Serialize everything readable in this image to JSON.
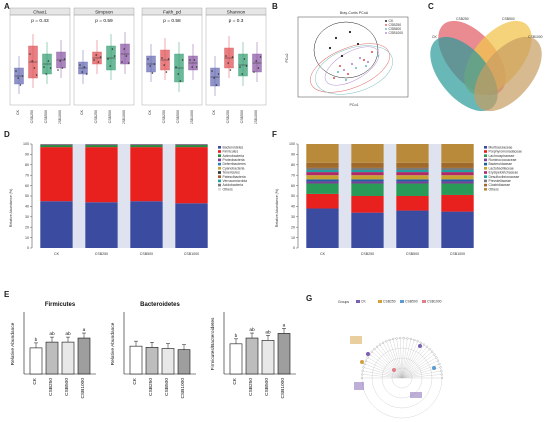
{
  "panels": {
    "A": "A",
    "B": "B",
    "C": "C",
    "D": "D",
    "E": "E",
    "F": "F",
    "G": "G"
  },
  "panelA": {
    "groups": [
      "CK",
      "CSB250",
      "CSB500",
      "CSB1000"
    ],
    "colors": [
      "#6a6fb6",
      "#e0555a",
      "#3ba277",
      "#8e5ba6"
    ],
    "subplots": [
      {
        "title": "Chao1",
        "p": "p = 0.43"
      },
      {
        "title": "Simpson",
        "p": "p = 0.59"
      },
      {
        "title": "Faith_pd",
        "p": "p = 0.58"
      },
      {
        "title": "Shannon",
        "p": "p = 0.3"
      }
    ]
  },
  "panelB": {
    "title": "Bray-Curtis PCoA",
    "xlabel": "PCo1",
    "ylabel": "PCo2",
    "legend": [
      "CK",
      "CSB250",
      "CSB500",
      "CSB1000"
    ]
  },
  "panelC": {
    "sets": [
      "CSB250",
      "CSB500",
      "CK",
      "CSB1000"
    ],
    "colors": [
      "#e3646d",
      "#f2c44e",
      "#2a9a9a",
      "#c79c63"
    ]
  },
  "panelD": {
    "categories": [
      "CK",
      "CSB250",
      "CSB500",
      "CSB1000"
    ],
    "ylabel": "Relative Abundance (%)",
    "yticks": [
      "100",
      "90",
      "80",
      "70",
      "60",
      "50",
      "40",
      "30",
      "20",
      "10",
      "0"
    ],
    "legend": [
      "Bacteroidetes",
      "Firmicutes",
      "Actinobacteria",
      "Proteobacteria",
      "Deferribacteres",
      "Cyanobacteria",
      "Tenericutes",
      "Patescibacteria",
      "Verrucomicrobia",
      "Acidobacteria",
      "Others"
    ],
    "colors": [
      "#3a4ba0",
      "#e8201e",
      "#2a8c3f",
      "#7b3f99",
      "#2c7fb8",
      "#c8a132",
      "#333333",
      "#a05a2c",
      "#22a3a0",
      "#7a7a7a",
      "#dcdcdc"
    ]
  },
  "panelF": {
    "categories": [
      "CK",
      "CSB250",
      "CSB500",
      "CSB1000"
    ],
    "ylabel": "Relative Abundance (%)",
    "yticks": [
      "100",
      "90",
      "80",
      "70",
      "60",
      "50",
      "40",
      "30",
      "20",
      "10",
      "0"
    ],
    "legend": [
      "Muribaculaceae",
      "Porphyromonadaceae",
      "Lachnospiraceae",
      "Ruminococcaceae",
      "Bacteroidaceae",
      "Lactobacillaceae",
      "Erysipelotrichaceae",
      "Desulfovibrionaceae",
      "Prevotellaceae",
      "Clostridiaceae",
      "Others"
    ],
    "colors": [
      "#3a4ba0",
      "#e8201e",
      "#2a9a58",
      "#7b3f99",
      "#1f5fa0",
      "#c8a132",
      "#b02a6a",
      "#22a3a0",
      "#7a7a7a",
      "#a06a2c",
      "#b88a3a"
    ]
  },
  "panelE": {
    "categories": [
      "CK",
      "CSB250",
      "CSB500",
      "CSB1000"
    ],
    "charts": [
      {
        "title": "Firmicutes",
        "ylabel": "Relative Abundance",
        "sig": [
          "b",
          "ab",
          "ab",
          "a"
        ]
      },
      {
        "title": "Bacteroidetes",
        "ylabel": "Relative Abundance",
        "sig": [
          "",
          "",
          "",
          ""
        ]
      },
      {
        "title": "",
        "ylabel": "Firmicutes/Bacteroidetes",
        "sig": [
          "b",
          "ab",
          "ab",
          "a"
        ]
      }
    ]
  },
  "panelG": {
    "legend_title": "Groups",
    "groups": [
      "CK",
      "CSB250",
      "CSB500",
      "CSB1000"
    ],
    "colors": [
      "#7b5fb0",
      "#d2a03c",
      "#5a9ad4",
      "#e27d8a"
    ]
  }
}
